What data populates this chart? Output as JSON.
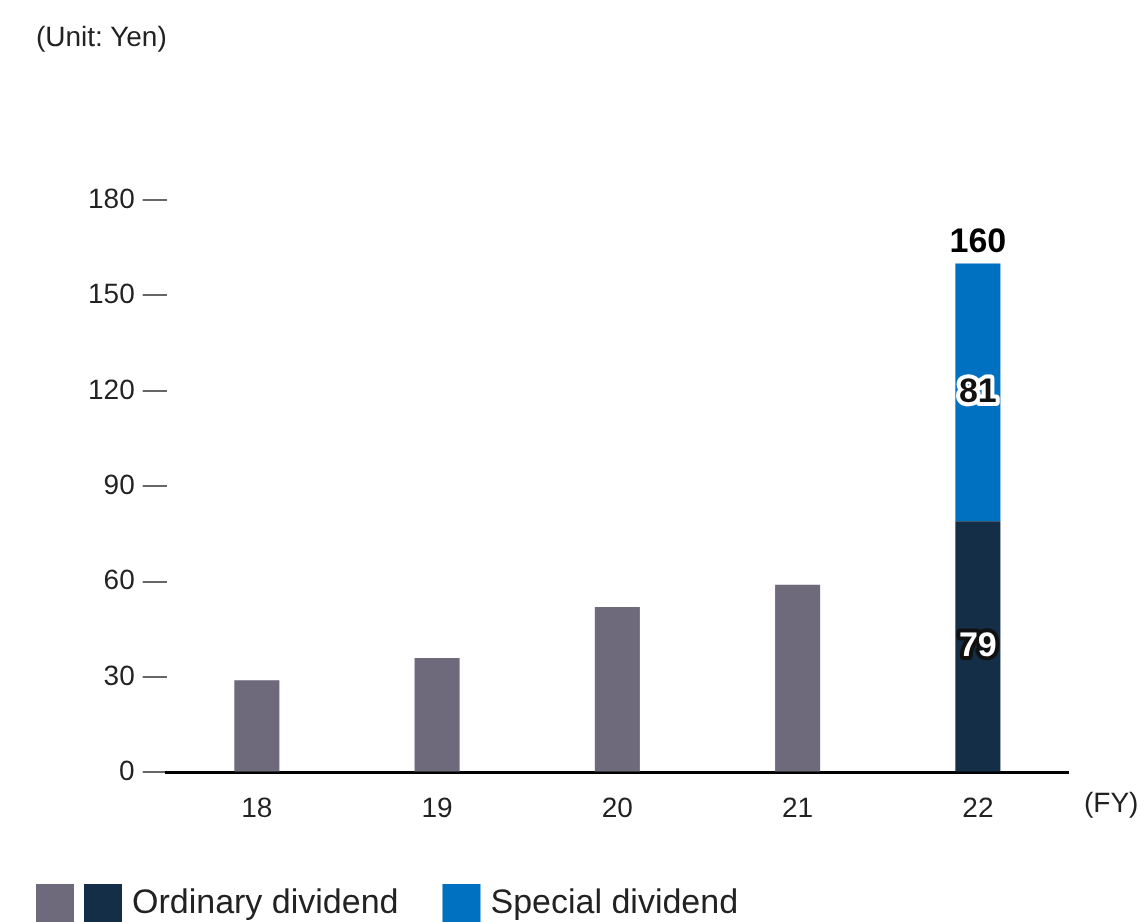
{
  "chart_data": {
    "type": "bar",
    "stacked": true,
    "categories": [
      "18",
      "19",
      "20",
      "21",
      "22"
    ],
    "xlabel": "(FY)",
    "annotations": [
      "(Unit: Yen)"
    ],
    "series": [
      {
        "name": "Ordinary dividend",
        "colors": [
          "#6e6a7c",
          "#6e6a7c",
          "#6e6a7c",
          "#6e6a7c",
          "#142e48"
        ],
        "values": [
          29,
          36,
          52,
          59,
          79
        ],
        "value_labels": [
          null,
          null,
          null,
          null,
          "79"
        ]
      },
      {
        "name": "Special dividend",
        "color": "#0070c0",
        "values": [
          null,
          null,
          null,
          null,
          81
        ],
        "value_labels": [
          null,
          null,
          null,
          null,
          "81"
        ]
      }
    ],
    "totals": [
      null,
      null,
      null,
      null,
      "160"
    ],
    "ylim": [
      0,
      180
    ],
    "yticks": [
      0,
      30,
      60,
      90,
      120,
      150,
      180
    ],
    "grid": false,
    "legend": "bottom left"
  }
}
